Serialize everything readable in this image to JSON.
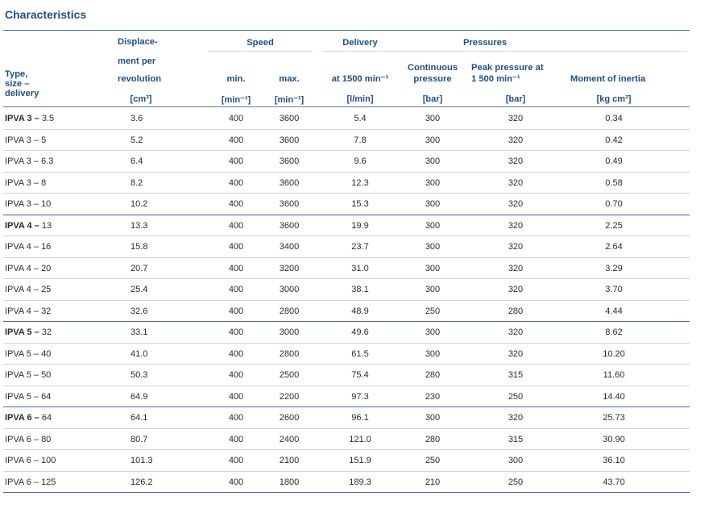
{
  "title": "Characteristics",
  "headers": {
    "type_line1": "Type,",
    "type_line2": "size –",
    "type_line3": "delivery",
    "disp_line1": "Displace-",
    "disp_line2": "ment per",
    "disp_line3": "revolution",
    "speed": "Speed",
    "speed_min": "min.",
    "speed_max": "max.",
    "delivery": "Delivery",
    "delivery_sub": "at 1500 min⁻¹",
    "pressures": "Pressures",
    "cont_line1": "Continuous",
    "cont_line2": "pressure",
    "peak_line1": "Peak pressure at",
    "peak_line2": "1 500 min⁻¹",
    "inertia": "Moment of inertia"
  },
  "units": [
    "[cm³]",
    "[min⁻¹]",
    "[min⁻¹]",
    "[l/min]",
    "[bar]",
    "[bar]",
    "[kg cm²]"
  ],
  "rows": [
    {
      "group": "IPVA 3",
      "size": "3.5",
      "bold": true,
      "disp": "3.6",
      "min": "400",
      "max": "3600",
      "delivery": "5.4",
      "cont": "300",
      "peak": "320",
      "inertia": "0.34"
    },
    {
      "group": "IPVA 3",
      "size": "5",
      "bold": false,
      "disp": "5.2",
      "min": "400",
      "max": "3600",
      "delivery": "7.8",
      "cont": "300",
      "peak": "320",
      "inertia": "0.42"
    },
    {
      "group": "IPVA 3",
      "size": "6.3",
      "bold": false,
      "disp": "6.4",
      "min": "400",
      "max": "3600",
      "delivery": "9.6",
      "cont": "300",
      "peak": "320",
      "inertia": "0.49"
    },
    {
      "group": "IPVA 3",
      "size": "8",
      "bold": false,
      "disp": "8.2",
      "min": "400",
      "max": "3600",
      "delivery": "12.3",
      "cont": "300",
      "peak": "320",
      "inertia": "0.58"
    },
    {
      "group": "IPVA 3",
      "size": "10",
      "bold": false,
      "disp": "10.2",
      "min": "400",
      "max": "3600",
      "delivery": "15.3",
      "cont": "300",
      "peak": "320",
      "inertia": "0.70"
    },
    {
      "group": "IPVA 4",
      "size": "13",
      "bold": true,
      "disp": "13.3",
      "min": "400",
      "max": "3600",
      "delivery": "19.9",
      "cont": "300",
      "peak": "320",
      "inertia": "2.25"
    },
    {
      "group": "IPVA 4",
      "size": "16",
      "bold": false,
      "disp": "15.8",
      "min": "400",
      "max": "3400",
      "delivery": "23.7",
      "cont": "300",
      "peak": "320",
      "inertia": "2.64"
    },
    {
      "group": "IPVA 4",
      "size": "20",
      "bold": false,
      "disp": "20.7",
      "min": "400",
      "max": "3200",
      "delivery": "31.0",
      "cont": "300",
      "peak": "320",
      "inertia": "3.29"
    },
    {
      "group": "IPVA 4",
      "size": "25",
      "bold": false,
      "disp": "25.4",
      "min": "400",
      "max": "3000",
      "delivery": "38.1",
      "cont": "300",
      "peak": "320",
      "inertia": "3.70"
    },
    {
      "group": "IPVA 4",
      "size": "32",
      "bold": false,
      "disp": "32.6",
      "min": "400",
      "max": "2800",
      "delivery": "48.9",
      "cont": "250",
      "peak": "280",
      "inertia": "4.44"
    },
    {
      "group": "IPVA 5",
      "size": "32",
      "bold": true,
      "disp": "33.1",
      "min": "400",
      "max": "3000",
      "delivery": "49.6",
      "cont": "300",
      "peak": "320",
      "inertia": "8.62"
    },
    {
      "group": "IPVA 5",
      "size": "40",
      "bold": false,
      "disp": "41.0",
      "min": "400",
      "max": "2800",
      "delivery": "61.5",
      "cont": "300",
      "peak": "320",
      "inertia": "10.20"
    },
    {
      "group": "IPVA 5",
      "size": "50",
      "bold": false,
      "disp": "50.3",
      "min": "400",
      "max": "2500",
      "delivery": "75.4",
      "cont": "280",
      "peak": "315",
      "inertia": "11.60"
    },
    {
      "group": "IPVA 5",
      "size": "64",
      "bold": false,
      "disp": "64.9",
      "min": "400",
      "max": "2200",
      "delivery": "97.3",
      "cont": "230",
      "peak": "250",
      "inertia": "14.40"
    },
    {
      "group": "IPVA 6",
      "size": "64",
      "bold": true,
      "disp": "64.1",
      "min": "400",
      "max": "2600",
      "delivery": "96.1",
      "cont": "300",
      "peak": "320",
      "inertia": "25.73"
    },
    {
      "group": "IPVA 6",
      "size": "80",
      "bold": false,
      "disp": "80.7",
      "min": "400",
      "max": "2400",
      "delivery": "121.0",
      "cont": "280",
      "peak": "315",
      "inertia": "30.90"
    },
    {
      "group": "IPVA 6",
      "size": "100",
      "bold": false,
      "disp": "101.3",
      "min": "400",
      "max": "2100",
      "delivery": "151.9",
      "cont": "250",
      "peak": "300",
      "inertia": "36.10"
    },
    {
      "group": "IPVA 6",
      "size": "125",
      "bold": false,
      "disp": "126.2",
      "min": "400",
      "max": "1800",
      "delivery": "189.3",
      "cont": "210",
      "peak": "250",
      "inertia": "43.70"
    }
  ]
}
